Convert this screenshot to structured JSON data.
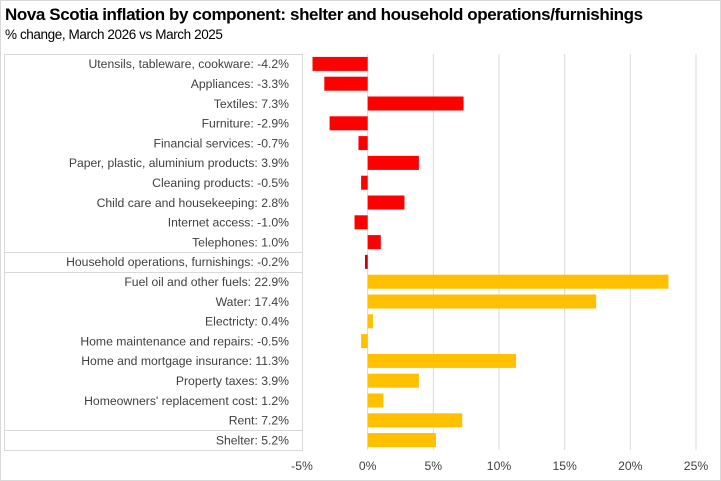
{
  "chart_data": {
    "type": "bar",
    "orientation": "horizontal",
    "title": "Nova Scotia inflation by component: shelter and household operations/furnishings",
    "subtitle": "% change, March 2026 vs March 2025",
    "xlabel": "",
    "ylabel": "",
    "xlim": [
      -5,
      25
    ],
    "xticks": [
      -5,
      0,
      5,
      10,
      15,
      20,
      25
    ],
    "xtick_labels": [
      "-5%",
      "0%",
      "5%",
      "10%",
      "15%",
      "20%",
      "25%"
    ],
    "grid": "vertical",
    "legend": "none",
    "colors": {
      "household": "#FF0000",
      "shelter": "#FFC000"
    },
    "categories": [
      {
        "label": "Utensils, tableware, cookware: -4.2%",
        "value": -4.2,
        "group": "household"
      },
      {
        "label": "Appliances: -3.3%",
        "value": -3.3,
        "group": "household"
      },
      {
        "label": "Textiles: 7.3%",
        "value": 7.3,
        "group": "household"
      },
      {
        "label": "Furniture: -2.9%",
        "value": -2.9,
        "group": "household"
      },
      {
        "label": "Financial services: -0.7%",
        "value": -0.7,
        "group": "household"
      },
      {
        "label": "Paper, plastic, aluminium products: 3.9%",
        "value": 3.9,
        "group": "household"
      },
      {
        "label": "Cleaning products: -0.5%",
        "value": -0.5,
        "group": "household"
      },
      {
        "label": "Child care and housekeeping: 2.8%",
        "value": 2.8,
        "group": "household"
      },
      {
        "label": "Internet access: -1.0%",
        "value": -1.0,
        "group": "household"
      },
      {
        "label": "Telephones: 1.0%",
        "value": 1.0,
        "group": "household"
      },
      {
        "label": "Household operations, furnishings: -0.2%",
        "value": -0.2,
        "group": "household",
        "total": true
      },
      {
        "label": "Fuel oil and other fuels: 22.9%",
        "value": 22.9,
        "group": "shelter"
      },
      {
        "label": "Water: 17.4%",
        "value": 17.4,
        "group": "shelter"
      },
      {
        "label": "Electricty: 0.4%",
        "value": 0.4,
        "group": "shelter"
      },
      {
        "label": "Home maintenance and repairs: -0.5%",
        "value": -0.5,
        "group": "shelter"
      },
      {
        "label": "Home and mortgage insurance: 11.3%",
        "value": 11.3,
        "group": "shelter"
      },
      {
        "label": "Property taxes: 3.9%",
        "value": 3.9,
        "group": "shelter"
      },
      {
        "label": "Homeowners' replacement cost: 1.2%",
        "value": 1.2,
        "group": "shelter"
      },
      {
        "label": "Rent: 7.2%",
        "value": 7.2,
        "group": "shelter"
      },
      {
        "label": "Shelter: 5.2%",
        "value": 5.2,
        "group": "shelter",
        "total": true
      }
    ],
    "separators_after_rows": [
      9,
      10,
      18
    ]
  }
}
